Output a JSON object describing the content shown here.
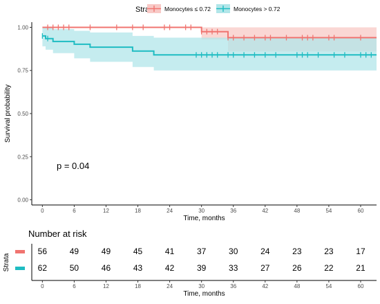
{
  "chart_data": [
    {
      "type": "line",
      "subtype": "kaplan-meier",
      "xlabel": "Time, months",
      "ylabel": "Survival probability",
      "xlim": [
        -2,
        63
      ],
      "ylim": [
        -0.03,
        1.03
      ],
      "xticks": [
        0,
        6,
        12,
        18,
        24,
        30,
        36,
        42,
        48,
        54,
        60
      ],
      "yticks": [
        0.0,
        0.25,
        0.5,
        0.75,
        1.0
      ],
      "ytick_labels": [
        "0.00",
        "0.25",
        "0.50",
        "0.75",
        "1.00"
      ],
      "grid": false,
      "annotation": "p = 0.04",
      "legend": {
        "position": "top",
        "title": "Strata",
        "entries": [
          "Monocytes ≤ 0.72",
          "Monocytes > 0.72"
        ]
      },
      "series": [
        {
          "name": "Monocytes ≤ 0.72",
          "color": "#f07470",
          "band_color": "#f8c9c6",
          "steps": [
            {
              "x": 0,
              "y": 1.0
            },
            {
              "x": 30,
              "y": 0.975
            },
            {
              "x": 35,
              "y": 0.94
            },
            {
              "x": 63,
              "y": 0.94
            }
          ],
          "ci_steps": [
            {
              "x": 0,
              "lo": 1.0,
              "hi": 1.0
            },
            {
              "x": 30,
              "lo": 0.93,
              "hi": 1.0
            },
            {
              "x": 35,
              "lo": 0.86,
              "hi": 1.0
            },
            {
              "x": 63,
              "lo": 0.86,
              "hi": 1.0
            }
          ],
          "censor_times": [
            1,
            2,
            3,
            4,
            5,
            9,
            14,
            17,
            19,
            23,
            24,
            27,
            28,
            30,
            31,
            32,
            33,
            35,
            36,
            38,
            40,
            42,
            43,
            46,
            49,
            50,
            51,
            54,
            55,
            60
          ]
        },
        {
          "name": "Monocytes > 0.72",
          "color": "#1fbcc2",
          "band_color": "#b2e6e9",
          "steps": [
            {
              "x": 0,
              "y": 0.95
            },
            {
              "x": 0.6,
              "y": 0.935
            },
            {
              "x": 2,
              "y": 0.918
            },
            {
              "x": 6,
              "y": 0.902
            },
            {
              "x": 9,
              "y": 0.885
            },
            {
              "x": 17,
              "y": 0.862
            },
            {
              "x": 21,
              "y": 0.84
            },
            {
              "x": 63,
              "y": 0.84
            }
          ],
          "ci_steps": [
            {
              "x": 0,
              "lo": 0.89,
              "hi": 1.0
            },
            {
              "x": 0.6,
              "lo": 0.87,
              "hi": 1.0
            },
            {
              "x": 2,
              "lo": 0.85,
              "hi": 0.99
            },
            {
              "x": 6,
              "lo": 0.82,
              "hi": 0.98
            },
            {
              "x": 9,
              "lo": 0.8,
              "hi": 0.97
            },
            {
              "x": 17,
              "lo": 0.77,
              "hi": 0.95
            },
            {
              "x": 21,
              "lo": 0.75,
              "hi": 0.94
            },
            {
              "x": 63,
              "lo": 0.75,
              "hi": 0.94
            }
          ],
          "censor_times": [
            0,
            1,
            29,
            30,
            31,
            32,
            33,
            35,
            36,
            38,
            40,
            42,
            44,
            48,
            49,
            50,
            52,
            55,
            57,
            60,
            61,
            62
          ]
        }
      ]
    },
    {
      "type": "table",
      "title": "Number at risk",
      "xlabel": "Time, months",
      "ylabel": "Strata",
      "xticks": [
        0,
        6,
        12,
        18,
        24,
        30,
        36,
        42,
        48,
        54,
        60
      ],
      "rows": [
        {
          "color": "#f07470",
          "values": [
            56,
            49,
            49,
            45,
            41,
            37,
            30,
            24,
            23,
            23,
            17
          ]
        },
        {
          "color": "#1fbcc2",
          "values": [
            62,
            50,
            46,
            43,
            42,
            39,
            33,
            27,
            26,
            22,
            21
          ]
        }
      ]
    }
  ]
}
